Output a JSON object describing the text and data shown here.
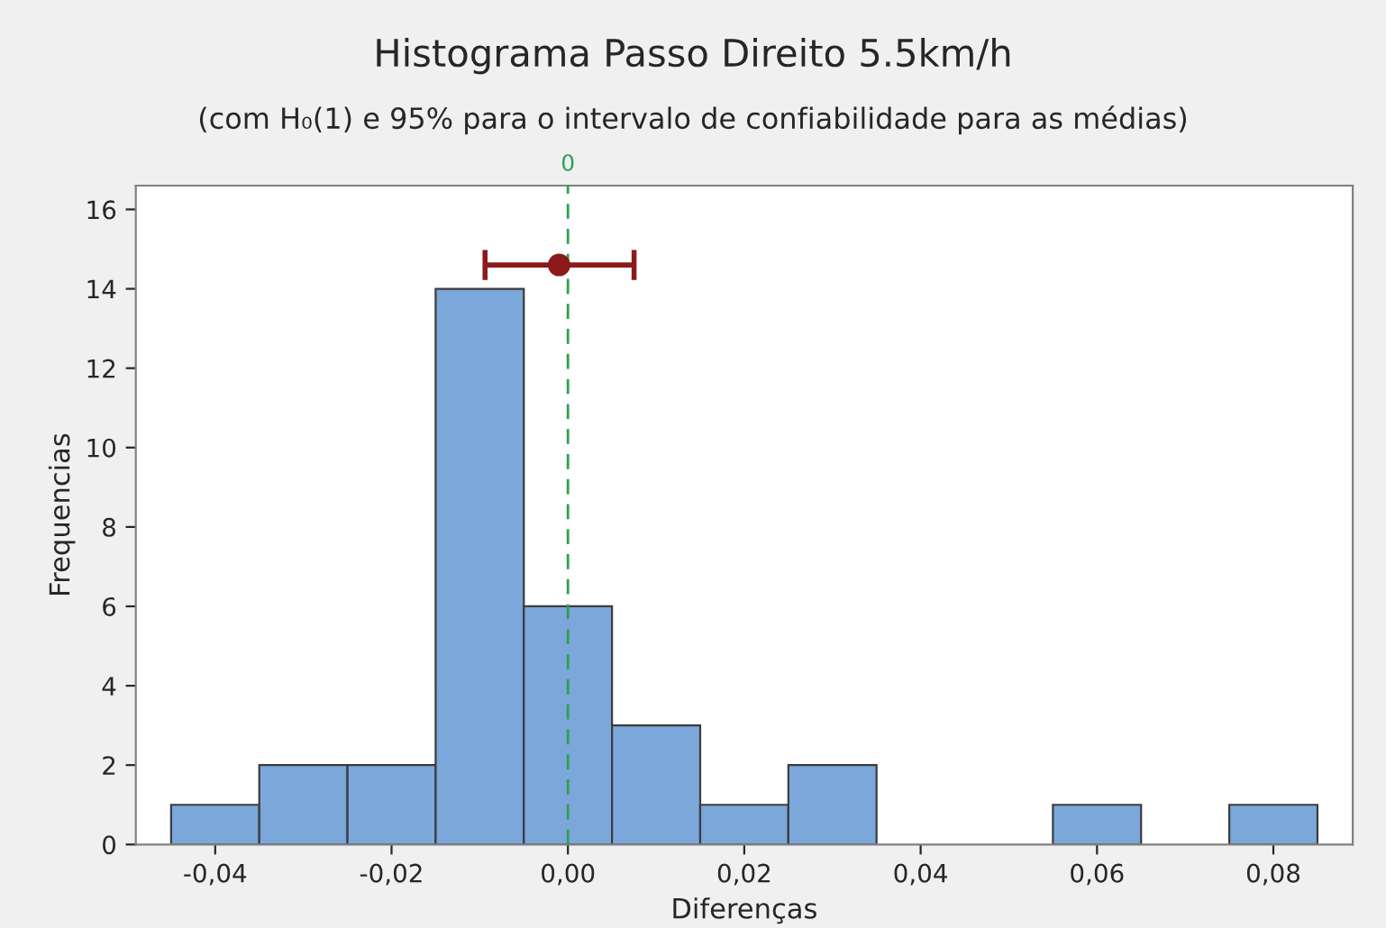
{
  "chart_data": {
    "type": "histogram",
    "title": "Histograma Passo Direito 5.5km/h",
    "subtitle": "(com H₀(1) e 95% para o intervalo de confiabilidade para as médias)",
    "xlabel": "Diferenças",
    "ylabel": "Frequencias",
    "bins": [
      -0.045,
      -0.035,
      -0.025,
      -0.015,
      -0.005,
      0.005,
      0.015,
      0.025,
      0.035,
      0.045,
      0.055,
      0.065,
      0.075,
      0.085
    ],
    "values": [
      1,
      2,
      2,
      14,
      6,
      3,
      1,
      2,
      0,
      0,
      1,
      0,
      1
    ],
    "color": "#7ba7db",
    "series": [
      {
        "type": "scatter",
        "x": [
          -0.001
        ],
        "values": [
          14.6
        ],
        "xerrors": [
          [
            -0.0094,
            0.0075
          ]
        ],
        "color": "#8b1a1a",
        "marker": "circle"
      }
    ],
    "ref_lines": [
      {
        "axis": "x",
        "value": 0,
        "label": "0",
        "color": "#2e9e4f",
        "line_style": "dashed"
      }
    ],
    "xlim": [
      -0.049,
      0.089
    ],
    "ylim": [
      0,
      16.6
    ],
    "xticks": [
      {
        "value": -0.04,
        "label": "-0,04"
      },
      {
        "value": -0.02,
        "label": "-0,02"
      },
      {
        "value": 0,
        "label": "0,00"
      },
      {
        "value": 0.02,
        "label": "0,02"
      },
      {
        "value": 0.04,
        "label": "0,04"
      },
      {
        "value": 0.06,
        "label": "0,06"
      },
      {
        "value": 0.08,
        "label": "0,08"
      }
    ],
    "yticks": [
      0,
      2,
      4,
      6,
      8,
      10,
      12,
      14,
      16
    ],
    "grid": false,
    "legend": false
  }
}
